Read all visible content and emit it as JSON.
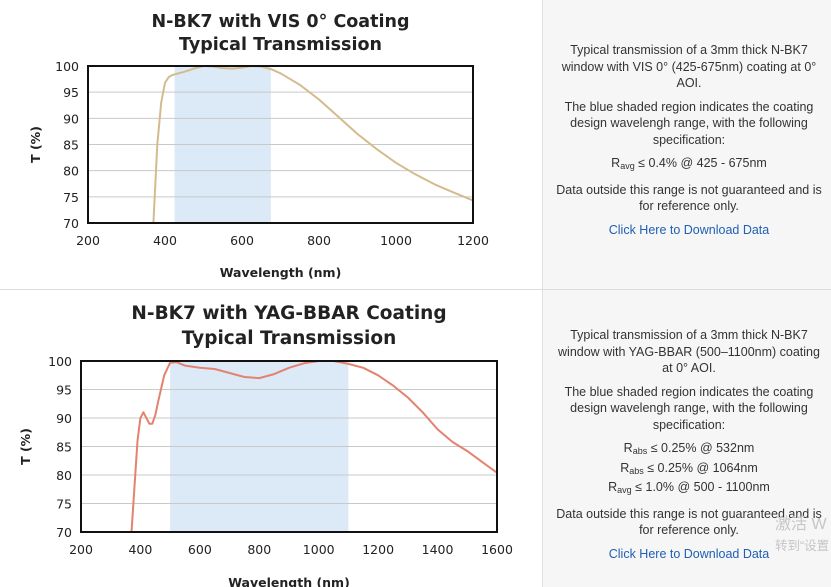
{
  "chart_data": [
    {
      "type": "line",
      "title": "N-BK7 with VIS 0° Coating",
      "subtitle": "Typical Transmission",
      "xlabel": "Wavelength (nm)",
      "ylabel": "T (%)",
      "xlim": [
        200,
        1200
      ],
      "ylim": [
        70,
        100
      ],
      "xticks": [
        200,
        400,
        600,
        800,
        1000,
        1200
      ],
      "yticks": [
        70,
        75,
        80,
        85,
        90,
        95,
        100
      ],
      "shaded_region": [
        425,
        675
      ],
      "line_color": "#d4bb8e",
      "shade_color": "#dce9f6",
      "grid": true,
      "x": [
        370,
        380,
        390,
        400,
        410,
        420,
        430,
        450,
        475,
        500,
        525,
        550,
        575,
        600,
        625,
        650,
        675,
        700,
        750,
        800,
        850,
        900,
        950,
        1000,
        1050,
        1100,
        1150,
        1200
      ],
      "y": [
        70,
        85,
        93,
        96.8,
        97.9,
        98.3,
        98.5,
        98.9,
        99.5,
        100,
        99.9,
        99.6,
        99.5,
        99.7,
        100,
        99.9,
        99.4,
        98.6,
        96.4,
        93.6,
        90.3,
        87,
        84.1,
        81.5,
        79.3,
        77.4,
        75.8,
        74.3
      ]
    },
    {
      "type": "line",
      "title": "N-BK7 with YAG-BBAR Coating",
      "subtitle": "Typical Transmission",
      "xlabel": "Wavelength (nm)",
      "ylabel": "T (%)",
      "xlim": [
        200,
        1600
      ],
      "ylim": [
        70,
        100
      ],
      "xticks": [
        200,
        400,
        600,
        800,
        1000,
        1200,
        1400,
        1600
      ],
      "yticks": [
        70,
        75,
        80,
        85,
        90,
        95,
        100
      ],
      "shaded_region": [
        500,
        1100
      ],
      "line_color": "#e3826f",
      "shade_color": "#dce9f6",
      "grid": true,
      "x": [
        370,
        380,
        390,
        400,
        410,
        420,
        430,
        440,
        450,
        460,
        480,
        500,
        520,
        550,
        600,
        650,
        700,
        750,
        800,
        850,
        900,
        950,
        1000,
        1050,
        1100,
        1150,
        1200,
        1250,
        1300,
        1350,
        1400,
        1450,
        1500,
        1550,
        1600
      ],
      "y": [
        70,
        78,
        86,
        90,
        91,
        90,
        89,
        89,
        90.5,
        93,
        97.5,
        99.7,
        99.8,
        99.2,
        98.8,
        98.6,
        97.9,
        97.2,
        97,
        97.7,
        98.8,
        99.6,
        100,
        100,
        99.5,
        98.8,
        97.5,
        95.7,
        93.6,
        91,
        88,
        85.8,
        84.2,
        82.3,
        80.4
      ]
    }
  ],
  "panels": [
    {
      "description": "Typical transmission of a 3mm thick N-BK7 window with VIS 0° (425-675nm) coating at 0° AOI.",
      "shaded_note": "The blue shaded region indicates the coating design wavelengh range, with the following specification:",
      "specs": [
        {
          "symbol": "R",
          "sub": "avg",
          "text": " ≤ 0.4% @ 425 - 675nm"
        }
      ],
      "disclaimer": "Data outside this range is not guaranteed and is for reference only.",
      "download_label": "Click Here to Download Data"
    },
    {
      "description": "Typical transmission of a 3mm thick N-BK7 window with YAG-BBAR (500–1100nm) coating at 0° AOI.",
      "shaded_note": "The blue shaded region indicates the coating design wavelengh range, with the following specification:",
      "specs": [
        {
          "symbol": "R",
          "sub": "abs",
          "text": " ≤ 0.25% @ 532nm"
        },
        {
          "symbol": "R",
          "sub": "abs",
          "text": " ≤ 0.25% @ 1064nm"
        },
        {
          "symbol": "R",
          "sub": "avg",
          "text": " ≤ 1.0% @ 500 - 1100nm"
        }
      ],
      "disclaimer": "Data outside this range is not guaranteed and is for reference only.",
      "download_label": "Click Here to Download Data"
    }
  ],
  "watermark": {
    "line1": "激活 W",
    "line2": "转到“设置"
  }
}
